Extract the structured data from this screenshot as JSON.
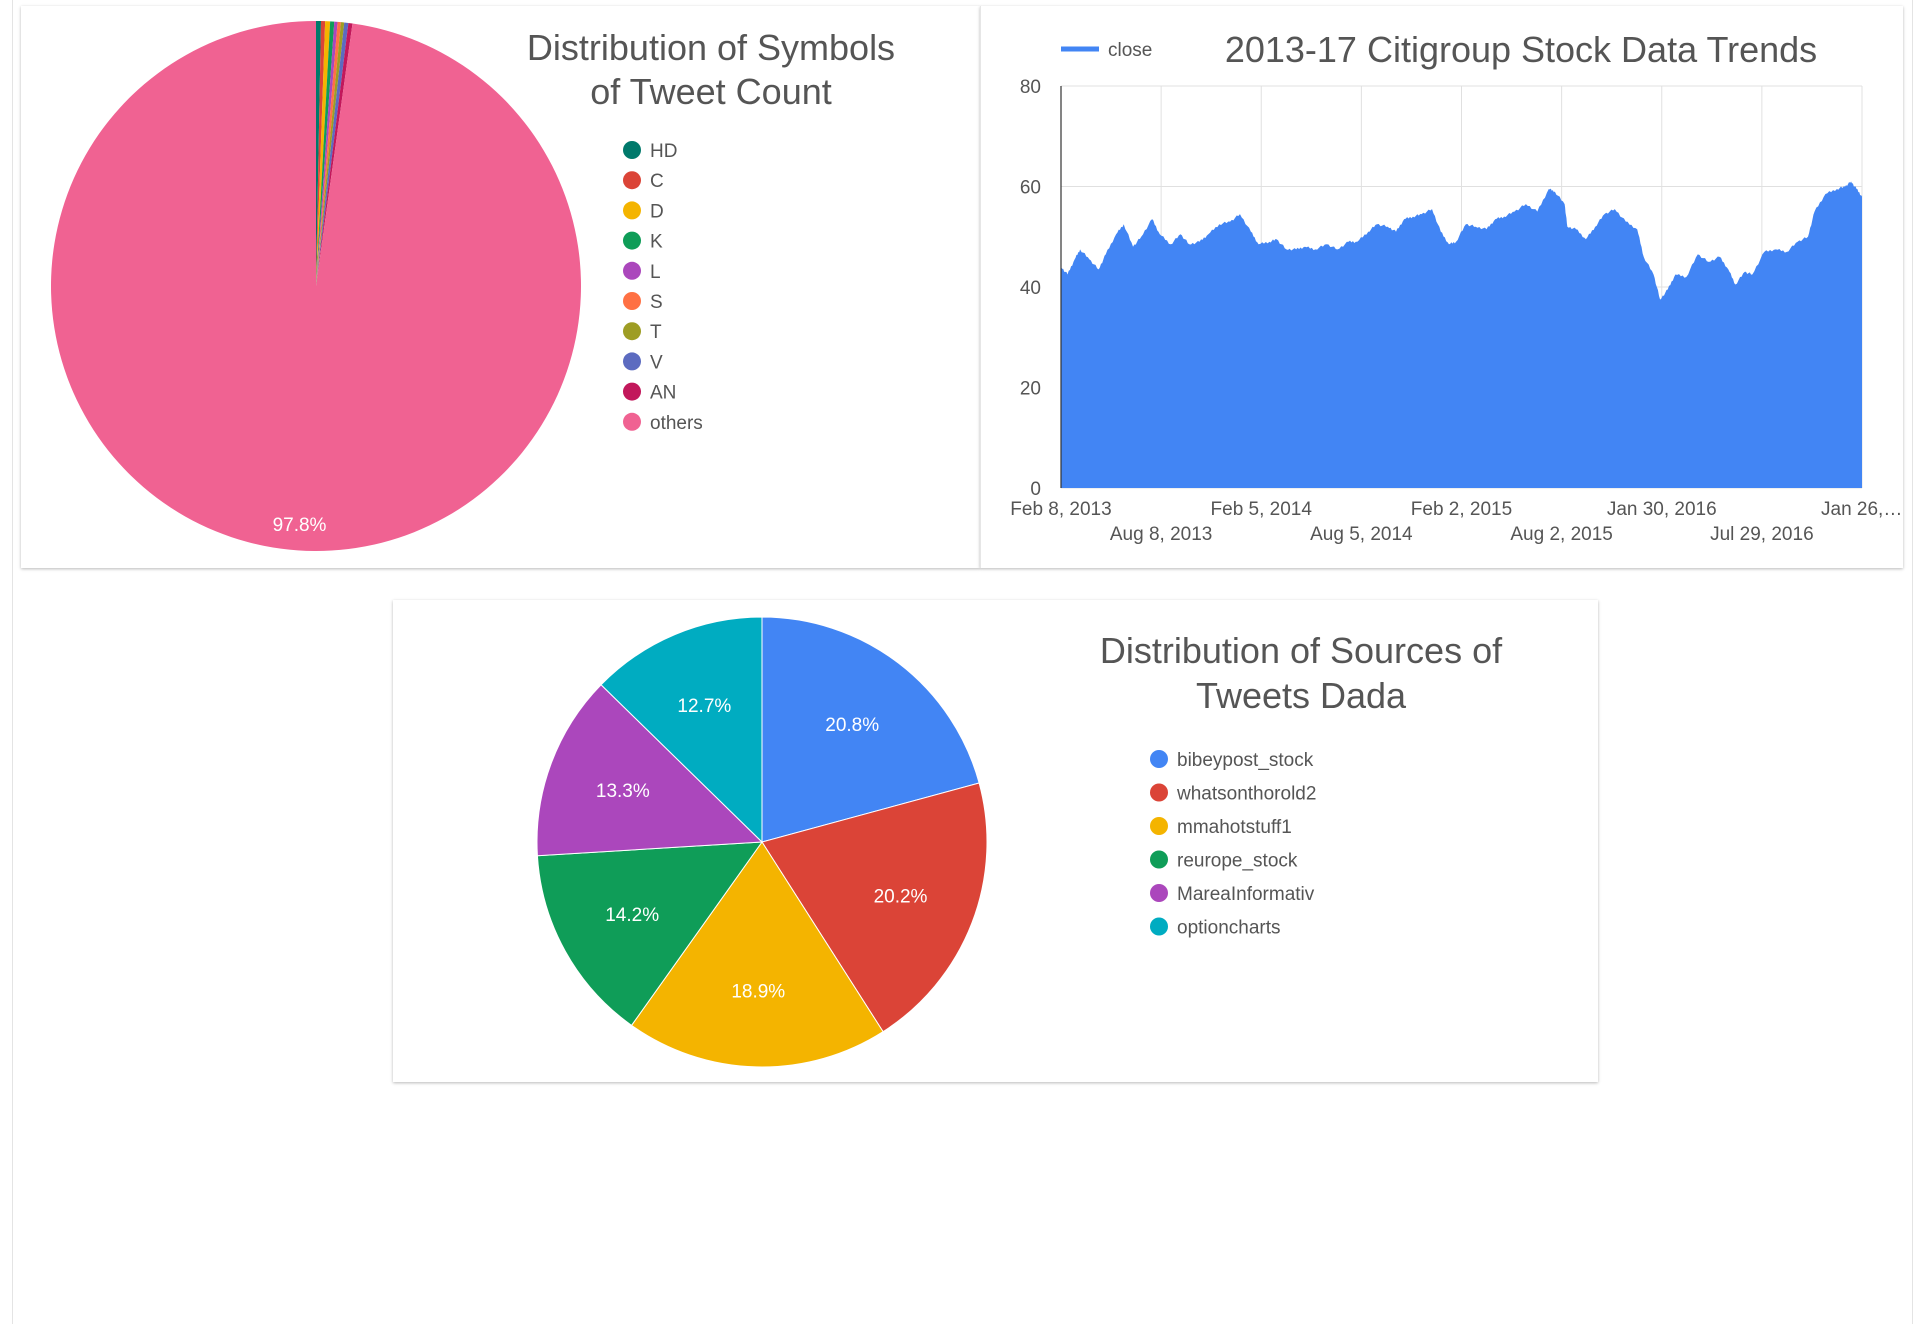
{
  "chart_data": [
    {
      "id": "symbols",
      "type": "pie",
      "title_lines": [
        "Distribution of Symbols",
        "of Tweet Count"
      ],
      "slices": [
        {
          "label": "HD",
          "value": 0.3,
          "color": "#00796b"
        },
        {
          "label": "C",
          "value": 0.25,
          "color": "#db4437"
        },
        {
          "label": "D",
          "value": 0.3,
          "color": "#f4b400"
        },
        {
          "label": "K",
          "value": 0.25,
          "color": "#0f9d58"
        },
        {
          "label": "L",
          "value": 0.2,
          "color": "#ab47bc"
        },
        {
          "label": "S",
          "value": 0.2,
          "color": "#ff7043"
        },
        {
          "label": "T",
          "value": 0.2,
          "color": "#9e9d24"
        },
        {
          "label": "V",
          "value": 0.25,
          "color": "#5c6bc0"
        },
        {
          "label": "AN",
          "value": 0.25,
          "color": "#c2185b"
        },
        {
          "label": "others",
          "value": 97.8,
          "color": "#f06292"
        }
      ],
      "shown_labels": {
        "others": "97.8%"
      },
      "legend_position": "right"
    },
    {
      "id": "stock",
      "type": "area",
      "title": "2013-17 Citigroup Stock Data Trends",
      "series": [
        {
          "name": "close",
          "color": "#4285f4"
        }
      ],
      "ylim": [
        0,
        80
      ],
      "yticks": [
        "0",
        "20",
        "40",
        "60",
        "80"
      ],
      "x_range": [
        "2013-02-08",
        "2017-02-15"
      ],
      "xticks_row1": [
        "Feb 8, 2013",
        "Feb 5, 2014",
        "Feb 2, 2015",
        "Jan 30, 2016",
        "Jan 26,…"
      ],
      "xticks_row2": [
        "Aug 8, 2013",
        "Aug 5, 2014",
        "Aug 2, 2015",
        "Jul 29, 2016"
      ],
      "close_points": [
        [
          "2013-02-08",
          44
        ],
        [
          "2013-02-20",
          42.5
        ],
        [
          "2013-03-05",
          45.5
        ],
        [
          "2013-03-15",
          47.5
        ],
        [
          "2013-04-01",
          45.5
        ],
        [
          "2013-04-18",
          43.5
        ],
        [
          "2013-05-01",
          46.5
        ],
        [
          "2013-05-20",
          50.5
        ],
        [
          "2013-06-03",
          52.5
        ],
        [
          "2013-06-20",
          48
        ],
        [
          "2013-07-05",
          50
        ],
        [
          "2013-07-25",
          53.5
        ],
        [
          "2013-08-08",
          50.5
        ],
        [
          "2013-08-28",
          48.5
        ],
        [
          "2013-09-15",
          50.5
        ],
        [
          "2013-10-01",
          48.5
        ],
        [
          "2013-10-20",
          49
        ],
        [
          "2013-11-05",
          50.5
        ],
        [
          "2013-11-25",
          52.5
        ],
        [
          "2013-12-15",
          53
        ],
        [
          "2014-01-02",
          54.5
        ],
        [
          "2014-01-22",
          51
        ],
        [
          "2014-02-05",
          48.5
        ],
        [
          "2014-02-25",
          49
        ],
        [
          "2014-03-10",
          49.5
        ],
        [
          "2014-03-28",
          47.5
        ],
        [
          "2014-04-15",
          47.5
        ],
        [
          "2014-05-01",
          48
        ],
        [
          "2014-05-20",
          47.5
        ],
        [
          "2014-06-10",
          48.5
        ],
        [
          "2014-06-30",
          47.5
        ],
        [
          "2014-07-20",
          49
        ],
        [
          "2014-08-05",
          49
        ],
        [
          "2014-08-25",
          51
        ],
        [
          "2014-09-10",
          52.5
        ],
        [
          "2014-09-30",
          52
        ],
        [
          "2014-10-15",
          51
        ],
        [
          "2014-10-30",
          53.5
        ],
        [
          "2014-11-15",
          54
        ],
        [
          "2014-12-01",
          54.5
        ],
        [
          "2014-12-20",
          55.5
        ],
        [
          "2015-01-05",
          51
        ],
        [
          "2015-01-20",
          48.5
        ],
        [
          "2015-02-02",
          49
        ],
        [
          "2015-02-20",
          52.5
        ],
        [
          "2015-03-10",
          52
        ],
        [
          "2015-03-30",
          51.5
        ],
        [
          "2015-04-15",
          53.5
        ],
        [
          "2015-05-01",
          54
        ],
        [
          "2015-05-20",
          55
        ],
        [
          "2015-06-10",
          56.5
        ],
        [
          "2015-07-01",
          55
        ],
        [
          "2015-07-22",
          59.5
        ],
        [
          "2015-08-02",
          59
        ],
        [
          "2015-08-20",
          56.5
        ],
        [
          "2015-08-25",
          52
        ],
        [
          "2015-09-10",
          51.5
        ],
        [
          "2015-09-28",
          49.5
        ],
        [
          "2015-10-15",
          52
        ],
        [
          "2015-11-01",
          54.5
        ],
        [
          "2015-11-20",
          55.5
        ],
        [
          "2015-12-10",
          53
        ],
        [
          "2015-12-31",
          51.5
        ],
        [
          "2016-01-12",
          46
        ],
        [
          "2016-01-30",
          42.5
        ],
        [
          "2016-02-11",
          37.5
        ],
        [
          "2016-02-25",
          39.5
        ],
        [
          "2016-03-10",
          42.5
        ],
        [
          "2016-03-30",
          42
        ],
        [
          "2016-04-20",
          46.5
        ],
        [
          "2016-05-10",
          45
        ],
        [
          "2016-05-30",
          46
        ],
        [
          "2016-06-15",
          43.5
        ],
        [
          "2016-06-28",
          40.5
        ],
        [
          "2016-07-15",
          43
        ],
        [
          "2016-07-29",
          42.5
        ],
        [
          "2016-08-20",
          47
        ],
        [
          "2016-09-10",
          47.5
        ],
        [
          "2016-09-30",
          47
        ],
        [
          "2016-10-20",
          49
        ],
        [
          "2016-11-08",
          50
        ],
        [
          "2016-11-20",
          55
        ],
        [
          "2016-12-10",
          58.5
        ],
        [
          "2016-12-31",
          59.5
        ],
        [
          "2017-01-15",
          60
        ],
        [
          "2017-01-26",
          61
        ],
        [
          "2017-02-05",
          59.5
        ],
        [
          "2017-02-15",
          58
        ]
      ],
      "legend_position": "top-left"
    },
    {
      "id": "sources",
      "type": "pie",
      "title_lines": [
        "Distribution of Sources of",
        "Tweets Dada"
      ],
      "slices": [
        {
          "label": "bibeypost_stock",
          "value": 20.8,
          "color": "#4285f4",
          "shown": "20.8%"
        },
        {
          "label": "whatsonthorold2",
          "value": 20.2,
          "color": "#db4437",
          "shown": "20.2%"
        },
        {
          "label": "mmahotstuff1",
          "value": 18.9,
          "color": "#f4b400",
          "shown": "18.9%"
        },
        {
          "label": "reurope_stock",
          "value": 14.2,
          "color": "#0f9d58",
          "shown": "14.2%"
        },
        {
          "label": "MareaInformativ",
          "value": 13.3,
          "color": "#ab47bc",
          "shown": "13.3%"
        },
        {
          "label": "optioncharts",
          "value": 12.7,
          "color": "#00acc1",
          "shown": "12.7%"
        }
      ],
      "legend_position": "right"
    }
  ]
}
